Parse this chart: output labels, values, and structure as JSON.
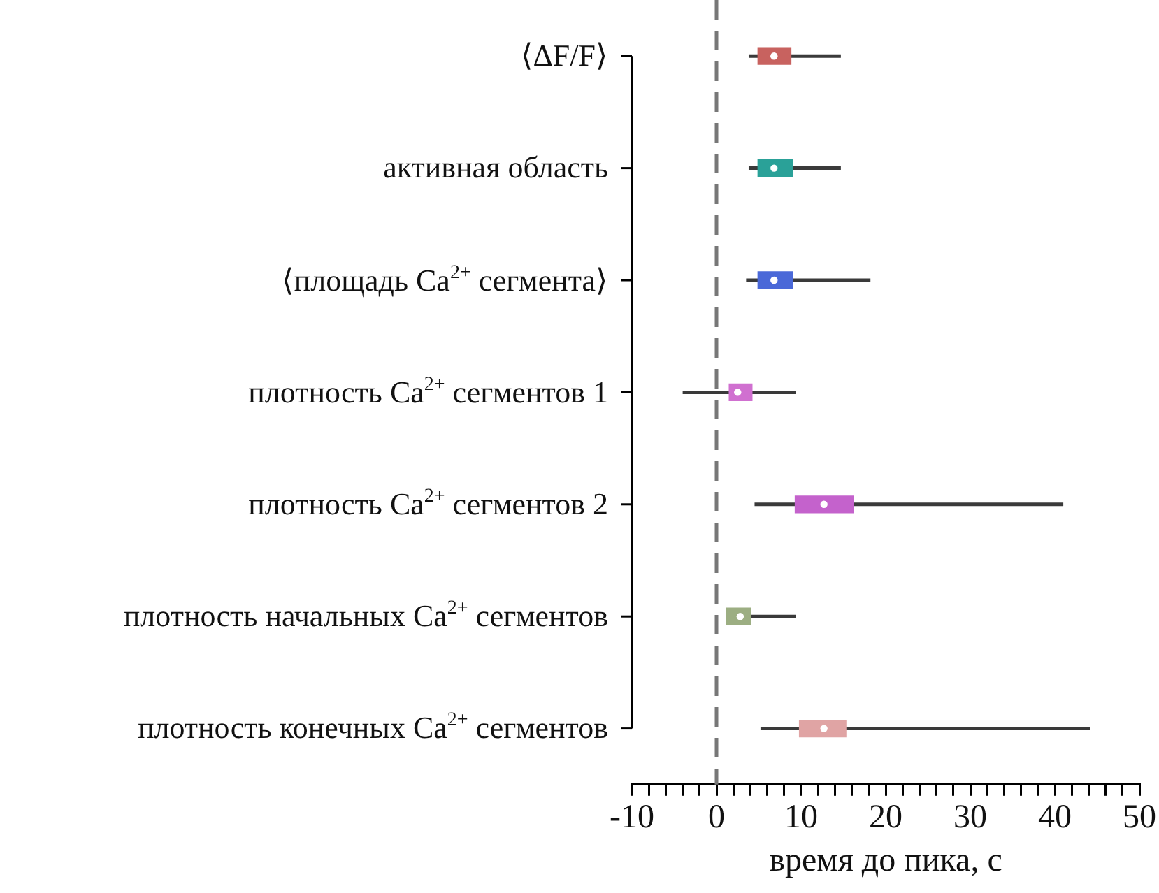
{
  "chart_data": {
    "type": "box",
    "orientation": "horizontal",
    "xlabel": "время до пика, с",
    "categories": [
      "⟨ΔF/F⟩",
      "активная область",
      "⟨площадь Ca$^{2+}$ сегмента⟩",
      "плотность Ca$^{2+}$ сегментов 1",
      "плотность Ca$^{2+}$ сегментов 2",
      "плотность начальных Ca$^{2+}$ сегментов",
      "плотность конечных Ca$^{2+}$ сегментов"
    ],
    "colors": [
      "#c8625f",
      "#2aa198",
      "#4a68d8",
      "#d070d0",
      "#c462cc",
      "#9cae82",
      "#e0a4a4"
    ],
    "boxes": [
      {
        "low": 3.8,
        "q1": 4.9,
        "median": 6.8,
        "q3": 8.8,
        "high": 14.7
      },
      {
        "low": 3.8,
        "q1": 4.9,
        "median": 6.8,
        "q3": 9.0,
        "high": 14.7
      },
      {
        "low": 3.5,
        "q1": 4.9,
        "median": 6.8,
        "q3": 9.0,
        "high": 18.2
      },
      {
        "low": -4.0,
        "q1": 1.5,
        "median": 2.5,
        "q3": 4.2,
        "high": 9.4
      },
      {
        "low": 4.5,
        "q1": 9.3,
        "median": 12.7,
        "q3": 16.2,
        "high": 41.0
      },
      {
        "low": 1.1,
        "q1": 1.2,
        "median": 2.8,
        "q3": 4.0,
        "high": 9.4
      },
      {
        "low": 5.2,
        "q1": 9.8,
        "median": 12.7,
        "q3": 15.3,
        "high": 44.2
      }
    ],
    "xlim": [
      -10,
      50
    ],
    "xticks": [
      -10,
      {
        "value": -8,
        "label": null
      },
      {
        "value": -6,
        "label": null
      },
      {
        "value": -4,
        "label": null
      },
      {
        "value": -2,
        "label": null
      },
      0,
      {
        "value": 2,
        "label": null
      },
      {
        "value": 4,
        "label": null
      },
      {
        "value": 6,
        "label": null
      },
      {
        "value": 8,
        "label": null
      },
      10,
      {
        "value": 12,
        "label": null
      },
      {
        "value": 14,
        "label": null
      },
      {
        "value": 16,
        "label": null
      },
      {
        "value": 18,
        "label": null
      },
      20,
      {
        "value": 22,
        "label": null
      },
      {
        "value": 24,
        "label": null
      },
      {
        "value": 26,
        "label": null
      },
      {
        "value": 28,
        "label": null
      },
      30,
      {
        "value": 32,
        "label": null
      },
      {
        "value": 34,
        "label": null
      },
      {
        "value": 36,
        "label": null
      },
      {
        "value": 38,
        "label": null
      },
      40,
      {
        "value": 42,
        "label": null
      },
      {
        "value": 44,
        "label": null
      },
      {
        "value": 46,
        "label": null
      },
      {
        "value": 48,
        "label": null
      },
      50
    ],
    "ref_lines": [
      {
        "axis": "x",
        "value": 0,
        "color": "#777777",
        "line_style": "dashed"
      }
    ],
    "grid": false,
    "legend": false
  }
}
